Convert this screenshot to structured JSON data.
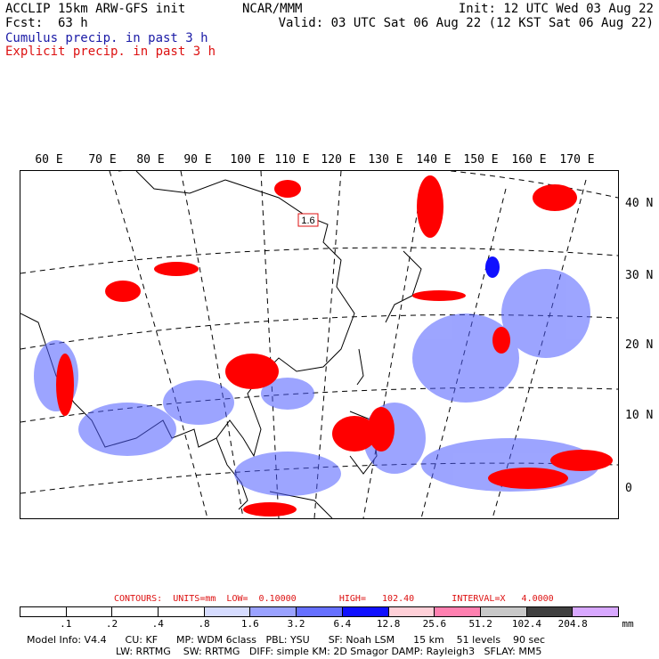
{
  "header": {
    "model_line": "ACCLIP 15km ARW-GFS init",
    "fcst_label": "Fcst:",
    "fcst_value": "63 h",
    "org": "NCAR/MMM",
    "init": "Init: 12 UTC Wed 03 Aug 22",
    "valid": "Valid: 03 UTC Sat 06 Aug 22 (12 KST Sat 06 Aug 22)",
    "cumulus": "Cumulus precip. in past 3 h",
    "explicit": "Explicit precip. in past 3 h"
  },
  "map": {
    "longitude_labels": [
      "60 E",
      "70 E",
      "80 E",
      "90 E",
      "100 E",
      "110 E",
      "120 E",
      "130 E",
      "140 E",
      "150 E",
      "160 E",
      "170 E"
    ],
    "latitude_labels": [
      "40 N",
      "30 N",
      "20 N",
      "10 N",
      "0"
    ],
    "max_label": "1.6",
    "colors": {
      "land_outline": "#000000",
      "cumulus": "#3b3bff",
      "explicit": "#ff0000"
    }
  },
  "legend": {
    "contours_label": "CONTOURS:  UNITS=mm  LOW=  0.10000        HIGH=   102.40       INTERVAL=X   4.0000",
    "levels": [
      ".1",
      ".2",
      ".4",
      ".8",
      "1.6",
      "3.2",
      "6.4",
      "12.8",
      "25.6",
      "51.2",
      "102.4",
      "204.8"
    ],
    "unit": "mm",
    "colors": [
      "#ffffff",
      "#ffffff",
      "#ffffff",
      "#ffffff",
      "#d6dcff",
      "#9aa2ff",
      "#6670ff",
      "#1010ff",
      "#ffd0d8",
      "#ff80b0",
      "#c8c8c8",
      "#404040",
      "#d8a8ff"
    ]
  },
  "footer": {
    "line1": "Model Info: V4.4      CU: KF      MP: WDM 6class   PBL: YSU      SF: Noah LSM      15 km    51 levels    90 sec",
    "line2": "LW: RRTMG    SW: RRTMG   DIFF: simple KM: 2D Smagor DAMP: Rayleigh3   SFLAY: MM5"
  }
}
